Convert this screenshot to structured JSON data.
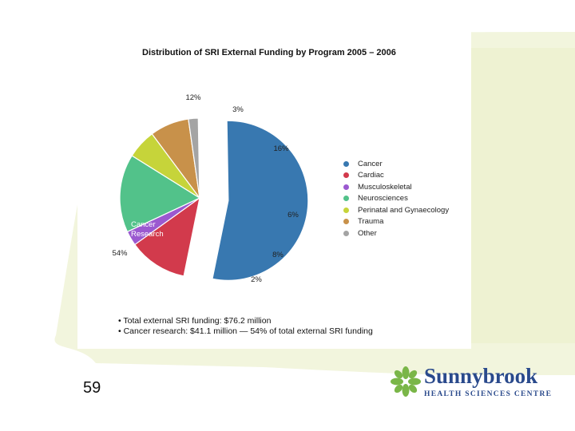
{
  "slide": {
    "page_number": "59"
  },
  "logo": {
    "name": "Sunnybrook",
    "subtitle": "HEALTH SCIENCES CENTRE",
    "color": "#2a4a8c",
    "leaf_color": "#7ab648"
  },
  "chart_data": {
    "type": "pie",
    "title": "Distribution of SRI External Funding by Program 2005 – 2006",
    "slices": [
      {
        "name": "Cancer",
        "value": 54,
        "label": "54%",
        "color": "#3878b0",
        "exploded": true
      },
      {
        "name": "Cardiac",
        "value": 12,
        "label": "12%",
        "color": "#d23a4c",
        "exploded": false
      },
      {
        "name": "Musculoskeletal",
        "value": 3,
        "label": "3%",
        "color": "#9b59d0",
        "exploded": false
      },
      {
        "name": "Neurosciences",
        "value": 16,
        "label": "16%",
        "color": "#52c28a",
        "exploded": false
      },
      {
        "name": "Perinatal and Gynaecology",
        "value": 6,
        "label": "6%",
        "color": "#c6d43a",
        "exploded": false
      },
      {
        "name": "Trauma",
        "value": 8,
        "label": "8%",
        "color": "#c8914a",
        "exploded": false
      },
      {
        "name": "Other",
        "value": 2,
        "label": "2%",
        "color": "#a4a4a4",
        "exploded": false
      }
    ],
    "annotations": [
      {
        "text": "Cancer Research",
        "lines": [
          "Cancer",
          "Research"
        ],
        "slice": "Cancer"
      }
    ],
    "legend_position": "right"
  },
  "notes": [
    "• Total external SRI funding: $76.2 million",
    "• Cancer research: $41.1 million — 54% of total external SRI funding"
  ]
}
